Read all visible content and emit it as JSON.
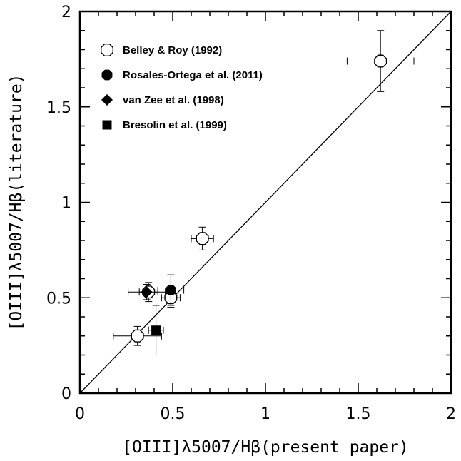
{
  "chart_data": {
    "type": "scatter",
    "xlabel": "[OIII]λ5007/Hβ(present paper)",
    "ylabel": "[OIII]λ5007/Hβ(literature)",
    "xlim": [
      0,
      2
    ],
    "ylim": [
      0,
      2
    ],
    "x_ticks": [
      "0",
      "0.5",
      "1",
      "1.5",
      "2"
    ],
    "y_ticks": [
      "0",
      "0.5",
      "1",
      "1.5",
      "2"
    ],
    "grid": false,
    "legend_position": "top-left",
    "reference_line": {
      "from": [
        0,
        0
      ],
      "to": [
        2,
        2
      ]
    },
    "series": [
      {
        "name": "Belley & Roy (1992)",
        "marker": "open-octagon",
        "points": [
          {
            "x": 1.62,
            "y": 1.74,
            "xerr": 0.18,
            "yerr": 0.16
          },
          {
            "x": 0.66,
            "y": 0.81,
            "xerr": 0.06,
            "yerr": 0.06
          },
          {
            "x": 0.49,
            "y": 0.5,
            "xerr": 0.05,
            "yerr": 0.05
          },
          {
            "x": 0.37,
            "y": 0.53,
            "xerr": 0.05,
            "yerr": 0.05
          },
          {
            "x": 0.31,
            "y": 0.3,
            "xerr": 0.13,
            "yerr": 0.05
          }
        ]
      },
      {
        "name": "Rosales-Ortega et al. (2011)",
        "marker": "filled-octagon",
        "points": [
          {
            "x": 0.49,
            "y": 0.54,
            "xerr": 0.07,
            "yerr": 0.08
          }
        ]
      },
      {
        "name": "van Zee et al. (1998)",
        "marker": "filled-diamond",
        "points": [
          {
            "x": 0.36,
            "y": 0.53,
            "xerr": 0.1,
            "yerr": 0.04
          }
        ]
      },
      {
        "name": "Bresolin et al. (1999)",
        "marker": "filled-square",
        "points": [
          {
            "x": 0.41,
            "y": 0.33,
            "xerr": 0.04,
            "yerr": 0.13
          }
        ]
      }
    ]
  }
}
